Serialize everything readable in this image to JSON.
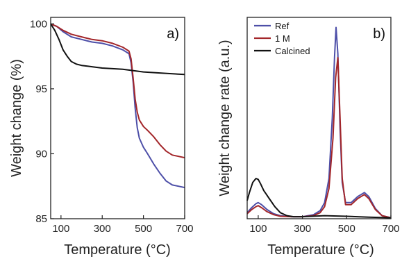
{
  "chart_data": [
    {
      "type": "line",
      "panel_label": "a)",
      "xlabel": "Temperature (°C)",
      "ylabel": "Weight change (%)",
      "xlim": [
        50,
        700
      ],
      "ylim": [
        85,
        100.5
      ],
      "xticks": [
        100,
        300,
        500,
        700
      ],
      "yticks": [
        85,
        90,
        95,
        100
      ],
      "colors": {
        "Ref": "#4d4fa8",
        "1 M": "#a3262a",
        "Calcined": "#111111"
      },
      "series": [
        {
          "name": "Ref",
          "color": "#4d4fa8",
          "x": [
            50,
            80,
            110,
            150,
            200,
            250,
            300,
            350,
            400,
            430,
            440,
            450,
            460,
            470,
            480,
            500,
            520,
            550,
            580,
            610,
            640,
            670,
            700
          ],
          "y": [
            100,
            99.8,
            99.4,
            99.0,
            98.8,
            98.6,
            98.5,
            98.3,
            98.0,
            97.7,
            97.0,
            95.5,
            93.5,
            92.0,
            91.2,
            90.5,
            90.0,
            89.2,
            88.5,
            87.9,
            87.6,
            87.5,
            87.4
          ]
        },
        {
          "name": "1 M",
          "color": "#a3262a",
          "x": [
            50,
            80,
            110,
            150,
            200,
            250,
            300,
            350,
            400,
            430,
            440,
            450,
            460,
            470,
            480,
            500,
            520,
            550,
            580,
            610,
            640,
            670,
            700
          ],
          "y": [
            100,
            99.8,
            99.5,
            99.2,
            99.0,
            98.8,
            98.7,
            98.5,
            98.2,
            97.9,
            97.3,
            95.8,
            94.2,
            93.2,
            92.6,
            92.1,
            91.8,
            91.3,
            90.7,
            90.2,
            89.9,
            89.8,
            89.7
          ]
        },
        {
          "name": "Calcined",
          "color": "#111111",
          "x": [
            50,
            70,
            90,
            110,
            130,
            150,
            175,
            200,
            250,
            300,
            400,
            500,
            600,
            700
          ],
          "y": [
            100,
            99.5,
            98.8,
            98.0,
            97.5,
            97.1,
            96.9,
            96.8,
            96.7,
            96.6,
            96.5,
            96.3,
            96.2,
            96.1
          ]
        }
      ]
    },
    {
      "type": "line",
      "panel_label": "b)",
      "xlabel": "Temperature (°C)",
      "ylabel": "Weight change rate (a.u.)",
      "xlim": [
        50,
        700
      ],
      "ylim": [
        0,
        1
      ],
      "xticks": [
        100,
        300,
        500,
        700
      ],
      "legend": {
        "position": "top-left",
        "entries": [
          "Ref",
          "1 M",
          "Calcined"
        ]
      },
      "series": [
        {
          "name": "Ref",
          "color": "#4d4fa8",
          "x": [
            50,
            70,
            90,
            100,
            115,
            140,
            170,
            200,
            250,
            300,
            350,
            380,
            400,
            420,
            435,
            445,
            452,
            460,
            470,
            480,
            495,
            520,
            550,
            580,
            600,
            630,
            660,
            700
          ],
          "y": [
            0.03,
            0.055,
            0.075,
            0.08,
            0.07,
            0.045,
            0.025,
            0.015,
            0.01,
            0.01,
            0.02,
            0.04,
            0.08,
            0.2,
            0.5,
            0.8,
            0.95,
            0.82,
            0.45,
            0.18,
            0.08,
            0.08,
            0.11,
            0.13,
            0.11,
            0.05,
            0.015,
            0.005
          ]
        },
        {
          "name": "1 M",
          "color": "#a3262a",
          "x": [
            50,
            70,
            90,
            100,
            115,
            140,
            170,
            200,
            250,
            300,
            350,
            380,
            400,
            420,
            438,
            450,
            460,
            470,
            480,
            495,
            520,
            550,
            580,
            600,
            630,
            660,
            700
          ],
          "y": [
            0.025,
            0.045,
            0.06,
            0.065,
            0.055,
            0.035,
            0.02,
            0.012,
            0.01,
            0.01,
            0.015,
            0.03,
            0.06,
            0.15,
            0.4,
            0.7,
            0.8,
            0.5,
            0.2,
            0.07,
            0.07,
            0.1,
            0.12,
            0.1,
            0.045,
            0.015,
            0.005
          ]
        },
        {
          "name": "Calcined",
          "color": "#111111",
          "x": [
            50,
            60,
            75,
            90,
            100,
            110,
            125,
            150,
            175,
            200,
            230,
            260,
            300,
            400,
            500,
            600,
            700
          ],
          "y": [
            0.09,
            0.13,
            0.18,
            0.2,
            0.195,
            0.175,
            0.14,
            0.1,
            0.06,
            0.03,
            0.015,
            0.01,
            0.01,
            0.015,
            0.012,
            0.008,
            0.005
          ]
        }
      ]
    }
  ]
}
